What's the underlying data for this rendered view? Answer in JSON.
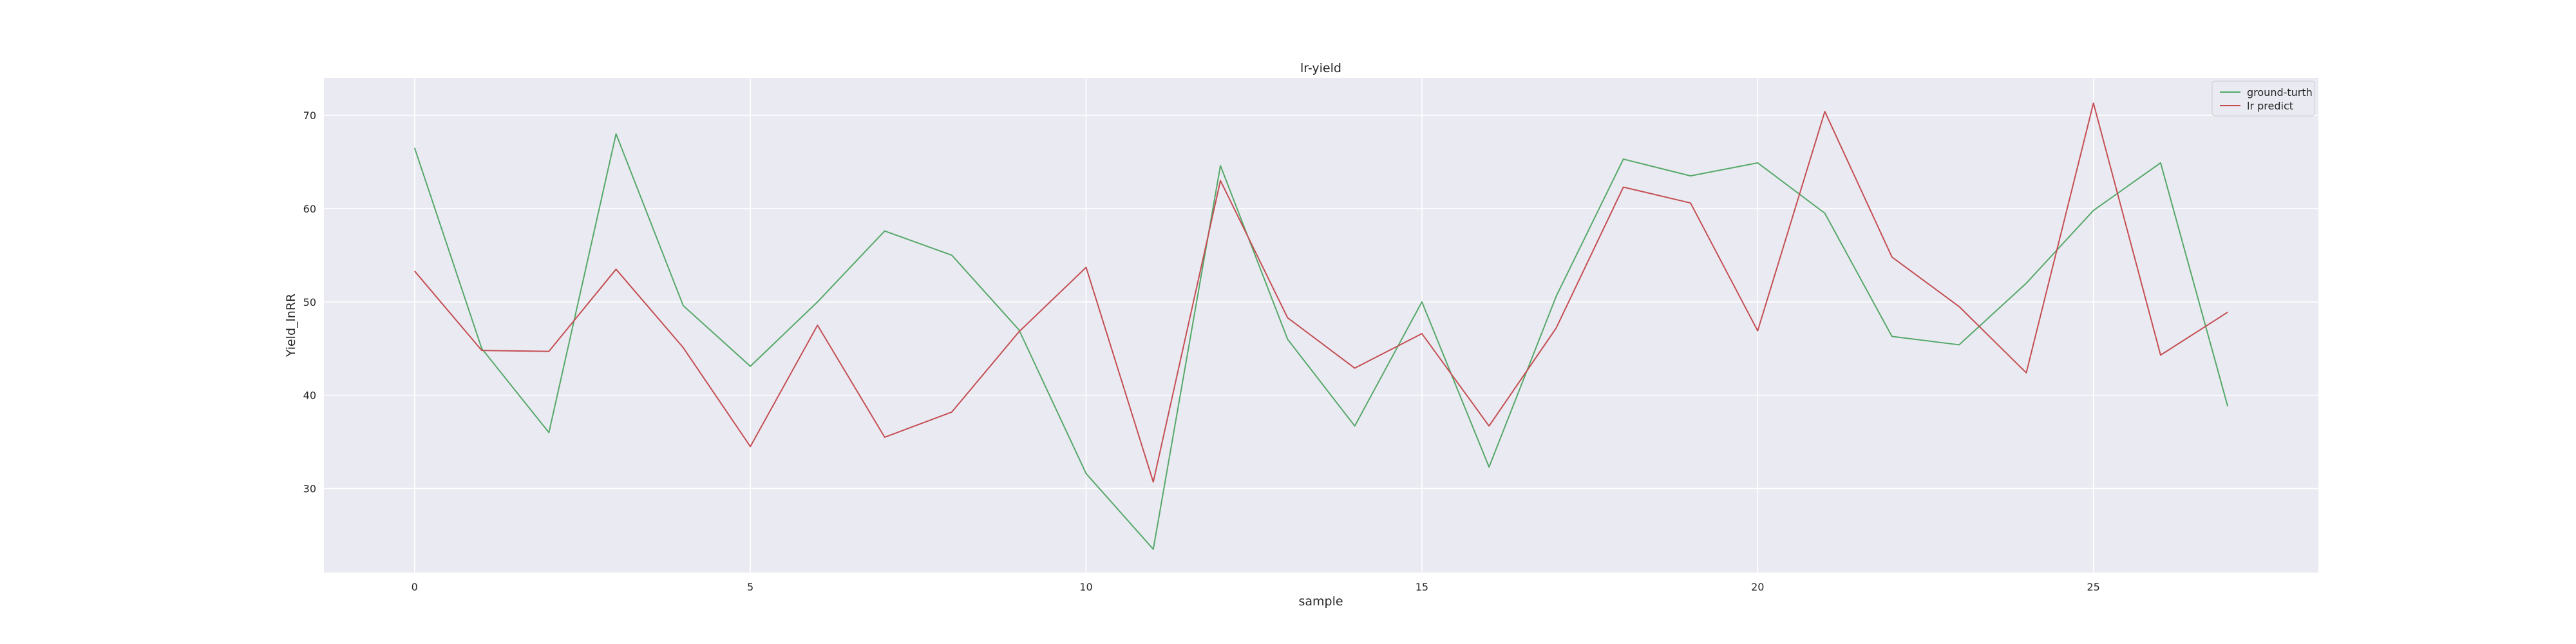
{
  "chart_data": {
    "type": "line",
    "title": "lr-yield",
    "xlabel": "sample",
    "ylabel": "Yield_lnRR",
    "xlim": [
      -1.35,
      28.35
    ],
    "ylim": [
      21,
      74
    ],
    "xticks": [
      0,
      5,
      10,
      15,
      20,
      25
    ],
    "yticks": [
      30,
      40,
      50,
      60,
      70
    ],
    "grid": true,
    "legend_position": "top-right",
    "x": [
      0,
      1,
      2,
      3,
      4,
      5,
      6,
      7,
      8,
      9,
      10,
      11,
      12,
      13,
      14,
      15,
      16,
      17,
      18,
      19,
      20,
      21,
      22,
      23,
      24,
      25,
      26,
      27
    ],
    "series": [
      {
        "name": "ground-turth",
        "color": "#55a868",
        "values": [
          66.5,
          45.0,
          36.0,
          68.0,
          49.6,
          43.1,
          50.0,
          57.6,
          55.0,
          47.0,
          31.6,
          23.5,
          64.6,
          46.0,
          36.7,
          50.0,
          32.3,
          50.6,
          65.3,
          63.5,
          64.9,
          59.5,
          46.3,
          45.4,
          52.0,
          59.8,
          64.9,
          38.8
        ]
      },
      {
        "name": "lr predict",
        "color": "#c44e52",
        "values": [
          53.3,
          44.8,
          44.7,
          53.5,
          45.1,
          34.5,
          47.5,
          35.5,
          38.2,
          46.8,
          53.7,
          30.7,
          63.0,
          48.3,
          42.9,
          46.6,
          36.7,
          47.2,
          62.3,
          60.6,
          46.9,
          70.4,
          54.8,
          49.5,
          42.4,
          71.3,
          44.3,
          48.9
        ]
      }
    ]
  }
}
